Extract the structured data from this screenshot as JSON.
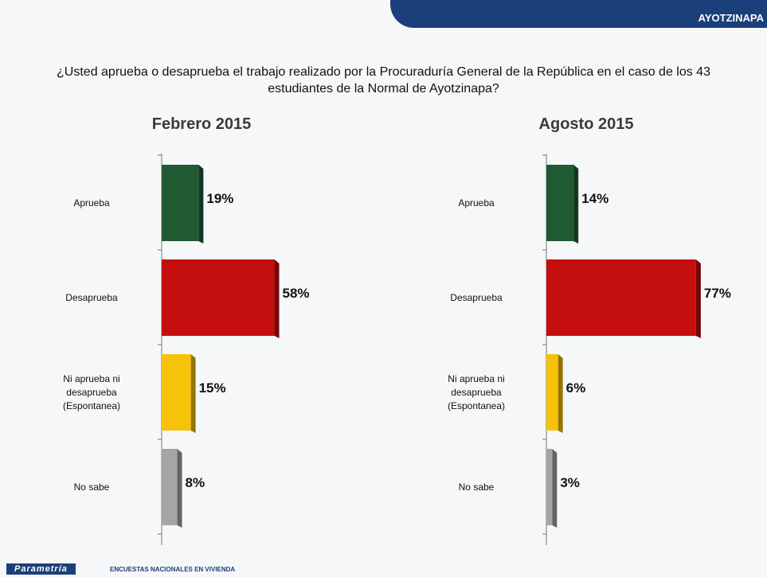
{
  "header": "AYOTZINAPA",
  "question": "¿Usted aprueba o desaprueba el trabajo realizado por la Procuraduría General de la República en el caso de los 43 estudiantes de la Normal de Ayotzinapa?",
  "footer": {
    "logo": "Parametría",
    "tagline": "ENCUESTAS NACIONALES EN VIVIENDA"
  },
  "chart_data": [
    {
      "type": "bar",
      "orientation": "horizontal",
      "title": "Febrero 2015",
      "categories": [
        "Aprueba",
        "Desaprueba",
        "Ni aprueba ni\ndesaprueba\n(Espontanea)",
        "No sabe"
      ],
      "values": [
        19,
        58,
        15,
        8
      ],
      "value_labels": [
        "19%",
        "58%",
        "15%",
        "8%"
      ],
      "colors": [
        "#1f5a32",
        "#c50e0e",
        "#f7c20a",
        "#a5a5a5"
      ]
    },
    {
      "type": "bar",
      "orientation": "horizontal",
      "title": "Agosto 2015",
      "categories": [
        "Aprueba",
        "Desaprueba",
        "Ni aprueba ni\ndesaprueba\n(Espontanea)",
        "No sabe"
      ],
      "values": [
        14,
        77,
        6,
        3
      ],
      "value_labels": [
        "14%",
        "77%",
        "6%",
        "3%"
      ],
      "colors": [
        "#1f5a32",
        "#c50e0e",
        "#f7c20a",
        "#a5a5a5"
      ]
    }
  ]
}
